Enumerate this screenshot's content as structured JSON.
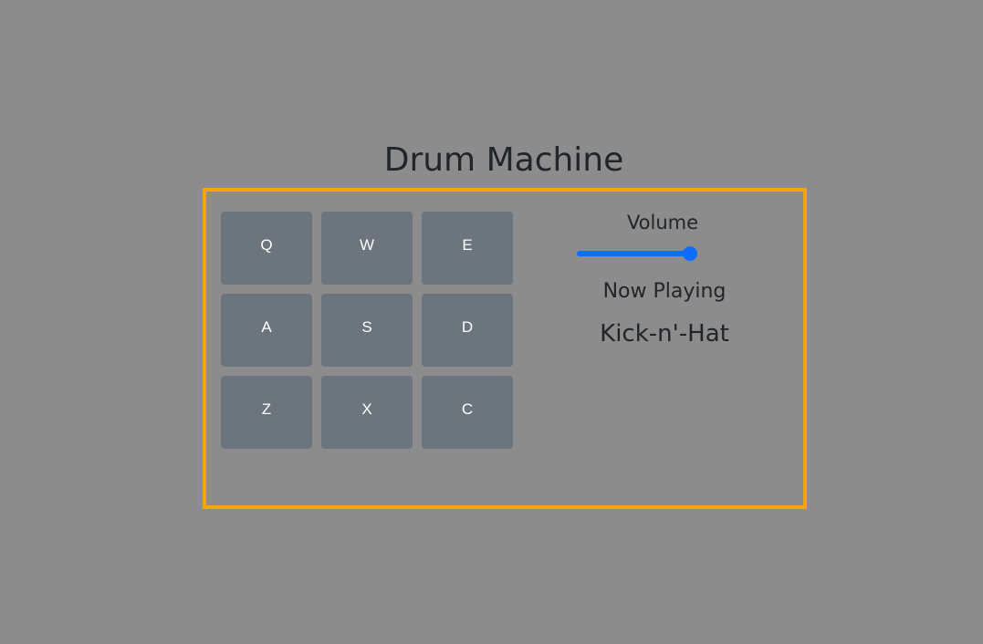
{
  "app": {
    "title": "Drum Machine"
  },
  "pads": [
    {
      "key": "Q"
    },
    {
      "key": "W"
    },
    {
      "key": "E"
    },
    {
      "key": "A"
    },
    {
      "key": "S"
    },
    {
      "key": "D"
    },
    {
      "key": "Z"
    },
    {
      "key": "X"
    },
    {
      "key": "C"
    }
  ],
  "controls": {
    "volume_label": "Volume",
    "volume_level": 1.0,
    "now_playing_label": "Now Playing",
    "now_playing": "Kick-n'-Hat"
  },
  "colors": {
    "background": "#8c8c8c",
    "frame_border": "#f5a40a",
    "pad": "#6c757d",
    "slider_accent": "#0d6efd",
    "text": "#212529"
  }
}
